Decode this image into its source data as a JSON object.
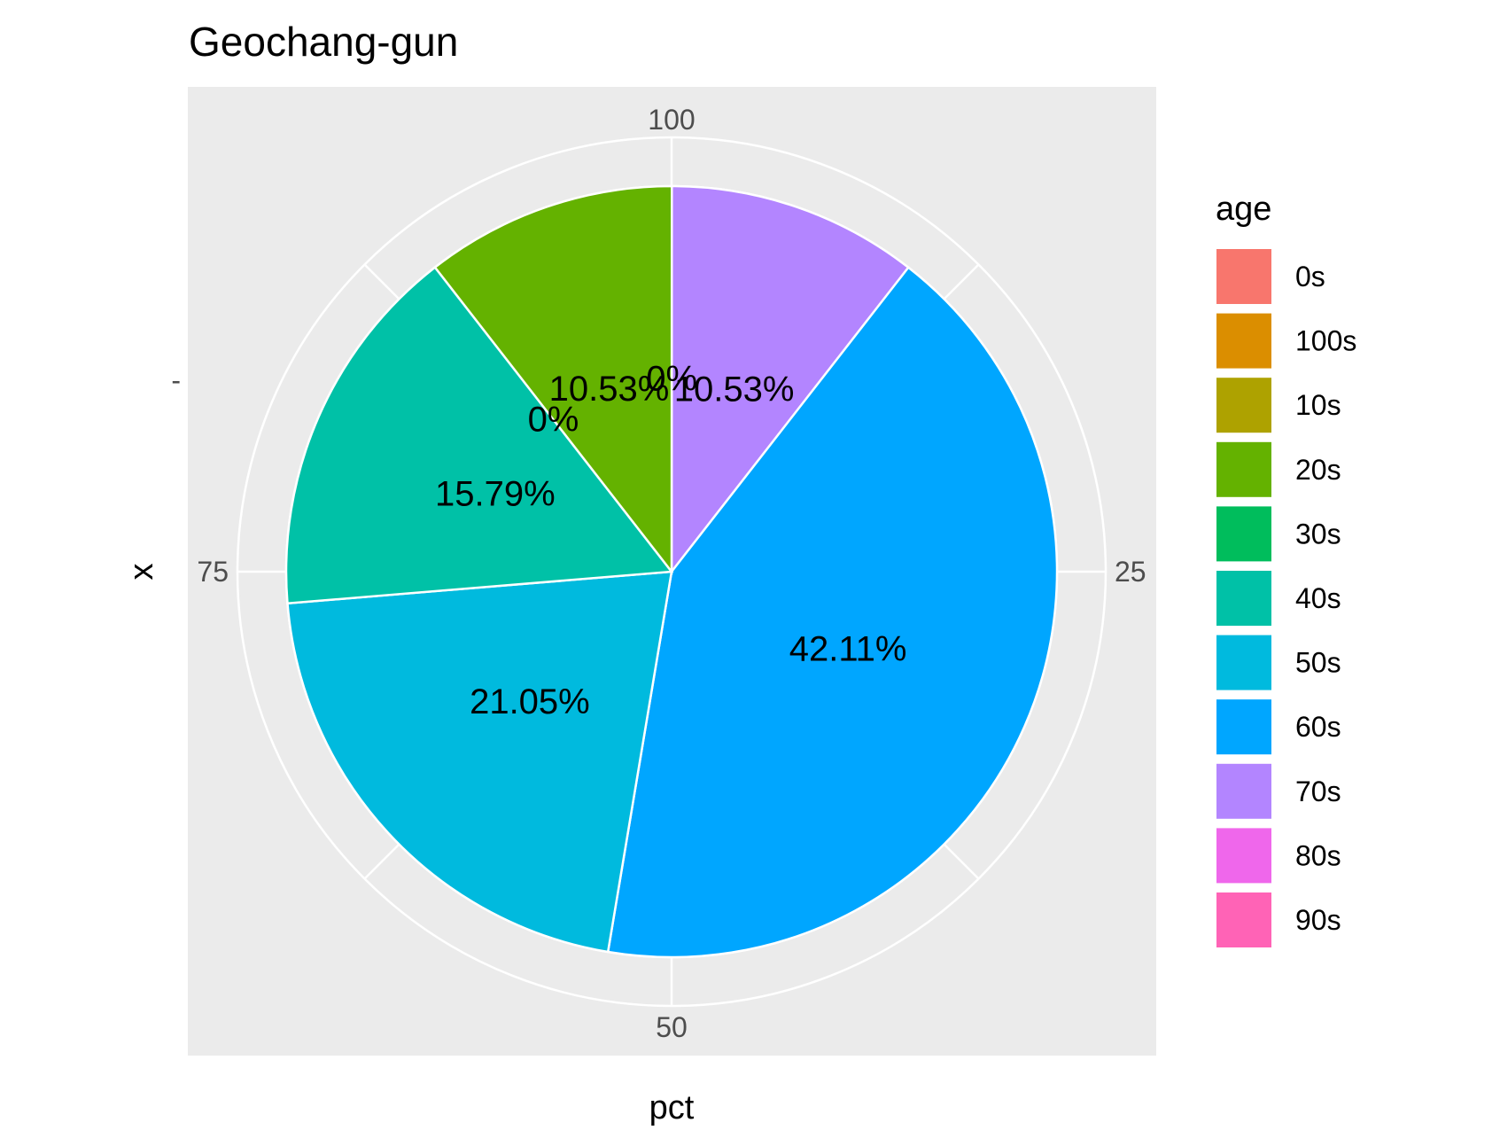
{
  "chart_data": {
    "type": "pie",
    "title": "Geochang-gun",
    "xlabel": "pct",
    "ylabel": "x",
    "y_tick_labels": [
      "-"
    ],
    "theta_ticks": [
      {
        "value": 100,
        "label": "100"
      },
      {
        "value": 25,
        "label": "25"
      },
      {
        "value": 50,
        "label": "50"
      },
      {
        "value": 75,
        "label": "75"
      }
    ],
    "grid": true,
    "legend": {
      "title": "age",
      "placement": "right",
      "items": [
        {
          "label": "0s",
          "color": "#F8766D"
        },
        {
          "label": "100s",
          "color": "#DB8E00"
        },
        {
          "label": "10s",
          "color": "#AEA200"
        },
        {
          "label": "20s",
          "color": "#64B200"
        },
        {
          "label": "30s",
          "color": "#00BD5C"
        },
        {
          "label": "40s",
          "color": "#00C1A7"
        },
        {
          "label": "50s",
          "color": "#00BADE"
        },
        {
          "label": "60s",
          "color": "#00A6FF"
        },
        {
          "label": "70s",
          "color": "#B385FF"
        },
        {
          "label": "80s",
          "color": "#EF67EB"
        },
        {
          "label": "90s",
          "color": "#FF63B6"
        }
      ]
    },
    "slices": [
      {
        "category": "70s",
        "value": 10.53,
        "label": "10.53%",
        "color": "#B385FF"
      },
      {
        "category": "60s",
        "value": 42.11,
        "label": "42.11%",
        "color": "#00A6FF"
      },
      {
        "category": "50s",
        "value": 21.05,
        "label": "21.05%",
        "color": "#00BADE"
      },
      {
        "category": "40s",
        "value": 15.79,
        "label": "15.79%",
        "color": "#00C1A7"
      },
      {
        "category": "30s",
        "value": 0,
        "label": "0%",
        "color": "#00BD5C"
      },
      {
        "category": "20s",
        "value": 10.53,
        "label": "10.53%",
        "color": "#64B200"
      },
      {
        "category": "10s",
        "value": 0,
        "label": "0%",
        "color": "#AEA200"
      }
    ]
  }
}
